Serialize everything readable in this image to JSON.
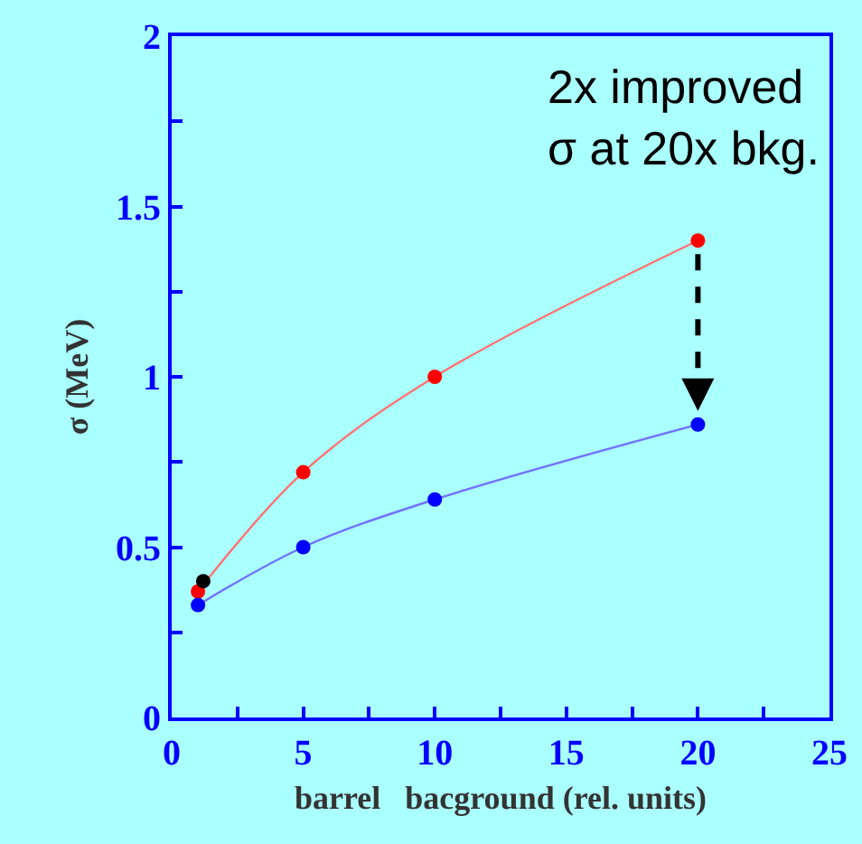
{
  "chart_data": {
    "type": "line",
    "xlabel": "barrel   bacground (rel. units)",
    "ylabel": "σ (MeV)",
    "xlim": [
      0,
      25
    ],
    "ylim": [
      0,
      2
    ],
    "xticks": [
      0,
      {
        "value": 2.5,
        "label": null
      },
      5,
      {
        "value": 7.5,
        "label": null
      },
      10,
      {
        "value": 12.5,
        "label": null
      },
      15,
      {
        "value": 17.5,
        "label": null
      },
      20,
      {
        "value": 22.5,
        "label": null
      },
      25
    ],
    "yticks": [
      0,
      {
        "value": 0.25,
        "label": null
      },
      0.5,
      {
        "value": 0.75,
        "label": null
      },
      1,
      {
        "value": 1.25,
        "label": null
      },
      1.5,
      {
        "value": 1.75,
        "label": null
      },
      2
    ],
    "marker": "circle",
    "line_style": "solid",
    "grid": false,
    "series": [
      {
        "color": "#ff0000",
        "x": [
          1,
          5,
          10,
          20
        ],
        "values": [
          0.37,
          0.72,
          1.0,
          1.4
        ]
      },
      {
        "color": "#0000ff",
        "x": [
          1,
          5,
          10,
          20
        ],
        "values": [
          0.33,
          0.5,
          0.64,
          0.86
        ]
      },
      {
        "type": "scatter",
        "color": "#000000",
        "x": [
          1.2
        ],
        "values": [
          0.4
        ]
      }
    ],
    "annotations": [
      "2x improved\nσ at 20x bkg."
    ]
  }
}
